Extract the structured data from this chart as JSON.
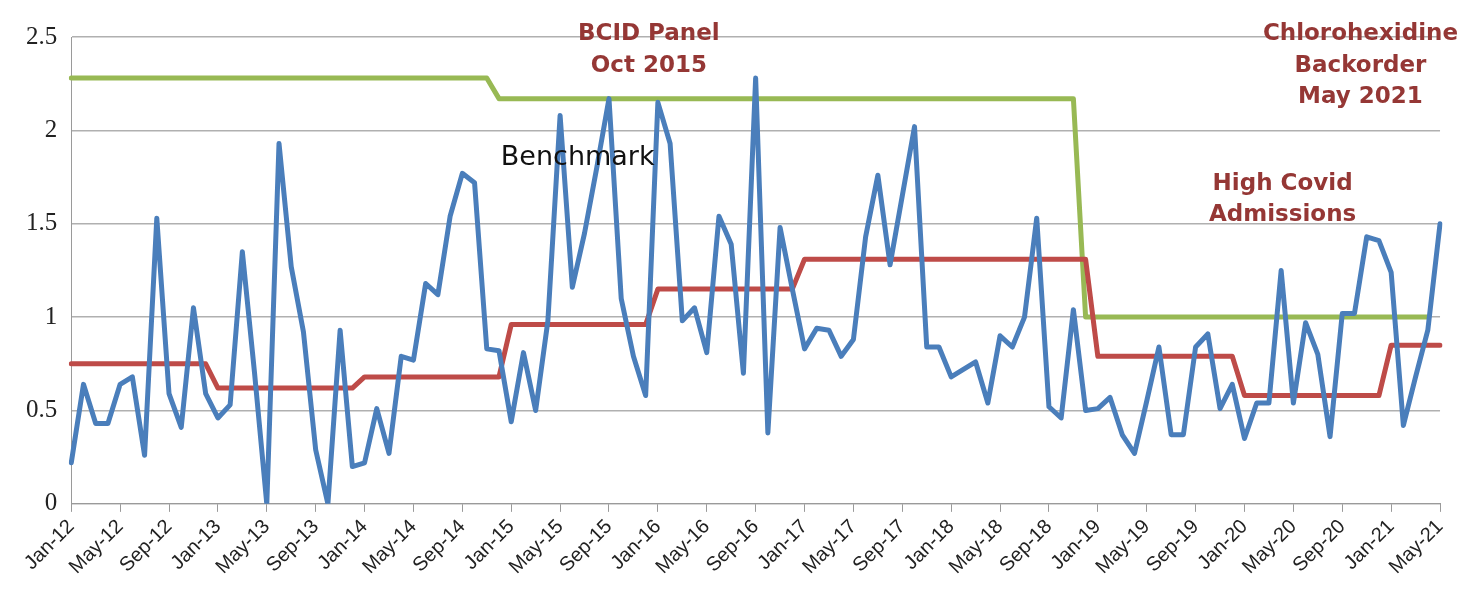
{
  "chart_data": {
    "type": "line",
    "categories": [
      "Jan-12",
      null,
      null,
      null,
      "May-12",
      null,
      null,
      null,
      "Sep-12",
      null,
      null,
      null,
      "Jan-13",
      null,
      null,
      null,
      "May-13",
      null,
      null,
      null,
      "Sep-13",
      null,
      null,
      null,
      "Jan-14",
      null,
      null,
      null,
      "May-14",
      null,
      null,
      null,
      "Sep-14",
      null,
      null,
      null,
      "Jan-15",
      null,
      null,
      null,
      "May-15",
      null,
      null,
      null,
      "Sep-15",
      null,
      null,
      null,
      "Jan-16",
      null,
      null,
      null,
      "May-16",
      null,
      null,
      null,
      "Sep-16",
      null,
      null,
      null,
      "Jan-17",
      null,
      null,
      null,
      "May-17",
      null,
      null,
      null,
      "Sep-17",
      null,
      null,
      null,
      "Jan-18",
      null,
      null,
      null,
      "May-18",
      null,
      null,
      null,
      "Sep-18",
      null,
      null,
      null,
      "Jan-19",
      null,
      null,
      null,
      "May-19",
      null,
      null,
      null,
      "Sep-19",
      null,
      null,
      null,
      "Jan-20",
      null,
      null,
      null,
      "May-20",
      null,
      null,
      null,
      "Sep-20",
      null,
      null,
      null,
      "Jan-21",
      null,
      null,
      null,
      "May-21"
    ],
    "series": [
      {
        "color": "#4a7ebb",
        "values": [
          0.22,
          0.64,
          0.43,
          0.43,
          0.64,
          0.68,
          0.26,
          1.53,
          0.59,
          0.41,
          1.05,
          0.59,
          0.46,
          0.53,
          1.35,
          0.7,
          0,
          1.93,
          1.27,
          0.92,
          0.29,
          0,
          0.93,
          0.2,
          0.22,
          0.51,
          0.27,
          0.79,
          0.77,
          1.18,
          1.12,
          1.54,
          1.77,
          1.72,
          0.83,
          0.82,
          0.44,
          0.81,
          0.5,
          0.98,
          2.08,
          1.16,
          1.45,
          1.8,
          2.17,
          1.1,
          0.79,
          0.58,
          2.15,
          1.93,
          0.98,
          1.05,
          0.81,
          1.54,
          1.39,
          0.7,
          2.28,
          0.38,
          1.48,
          1.15,
          0.83,
          0.94,
          0.93,
          0.79,
          0.88,
          1.43,
          1.76,
          1.28,
          1.65,
          2.02,
          0.84,
          0.84,
          0.68,
          0.72,
          0.76,
          0.54,
          0.9,
          0.84,
          1,
          1.53,
          0.52,
          0.46,
          1.04,
          0.5,
          0.51,
          0.57,
          0.37,
          0.27,
          0.55,
          0.84,
          0.37,
          0.37,
          0.84,
          0.91,
          0.51,
          0.64,
          0.35,
          0.54,
          0.54,
          1.25,
          0.54,
          0.97,
          0.8,
          0.36,
          1.02,
          1.02,
          1.43,
          1.41,
          1.24,
          0.42,
          0.68,
          0.93,
          1.5
        ]
      },
      {
        "color": "#be4b48",
        "values": [
          0.75,
          0.75,
          0.75,
          0.75,
          0.75,
          0.75,
          0.75,
          0.75,
          0.75,
          0.75,
          0.75,
          0.75,
          0.62,
          0.62,
          0.62,
          0.62,
          0.62,
          0.62,
          0.62,
          0.62,
          0.62,
          0.62,
          0.62,
          0.62,
          0.68,
          0.68,
          0.68,
          0.68,
          0.68,
          0.68,
          0.68,
          0.68,
          0.68,
          0.68,
          0.68,
          0.68,
          0.96,
          0.96,
          0.96,
          0.96,
          0.96,
          0.96,
          0.96,
          0.96,
          0.96,
          0.96,
          0.96,
          0.96,
          1.15,
          1.15,
          1.15,
          1.15,
          1.15,
          1.15,
          1.15,
          1.15,
          1.15,
          1.15,
          1.15,
          1.15,
          1.31,
          1.31,
          1.31,
          1.31,
          1.31,
          1.31,
          1.31,
          1.31,
          1.31,
          1.31,
          1.31,
          1.31,
          1.31,
          1.31,
          1.31,
          1.31,
          1.31,
          1.31,
          1.31,
          1.31,
          1.31,
          1.31,
          1.31,
          1.31,
          0.79,
          0.79,
          0.79,
          0.79,
          0.79,
          0.79,
          0.79,
          0.79,
          0.79,
          0.79,
          0.79,
          0.79,
          0.58,
          0.58,
          0.58,
          0.58,
          0.58,
          0.58,
          0.58,
          0.58,
          0.58,
          0.58,
          0.58,
          0.58,
          0.85,
          0.85,
          0.85,
          0.85,
          0.85
        ]
      },
      {
        "color": "#98b954",
        "values": [
          2.28,
          2.28,
          2.28,
          2.28,
          2.28,
          2.28,
          2.28,
          2.28,
          2.28,
          2.28,
          2.28,
          2.28,
          2.28,
          2.28,
          2.28,
          2.28,
          2.28,
          2.28,
          2.28,
          2.28,
          2.28,
          2.28,
          2.28,
          2.28,
          2.28,
          2.28,
          2.28,
          2.28,
          2.28,
          2.28,
          2.28,
          2.28,
          2.28,
          2.28,
          2.28,
          2.17,
          2.17,
          2.17,
          2.17,
          2.17,
          2.17,
          2.17,
          2.17,
          2.17,
          2.17,
          2.17,
          2.17,
          2.17,
          2.17,
          2.17,
          2.17,
          2.17,
          2.17,
          2.17,
          2.17,
          2.17,
          2.17,
          2.17,
          2.17,
          2.17,
          2.17,
          2.17,
          2.17,
          2.17,
          2.17,
          2.17,
          2.17,
          2.17,
          2.17,
          2.17,
          2.17,
          2.17,
          2.17,
          2.17,
          2.17,
          2.17,
          2.17,
          2.17,
          2.17,
          2.17,
          2.17,
          2.17,
          2.17,
          1,
          1,
          1,
          1,
          1,
          1,
          1,
          1,
          1,
          1,
          1,
          1,
          1,
          1,
          1,
          1,
          1,
          1,
          1,
          1,
          1,
          1,
          1,
          1,
          1,
          1,
          1,
          1,
          1,
          null
        ]
      }
    ],
    "ylim": [
      0,
      2.5
    ],
    "yticks": [
      0,
      0.5,
      1,
      1.5,
      2,
      2.5
    ],
    "grid": "y",
    "legend": false,
    "marker": "none",
    "line_style": "solid",
    "annotations": [
      "BCID Panel\nOct 2015",
      "Benchmark",
      "High Covid\nAdmissions",
      "Chlorohexidine\nBackorder\nMay 2021"
    ]
  }
}
